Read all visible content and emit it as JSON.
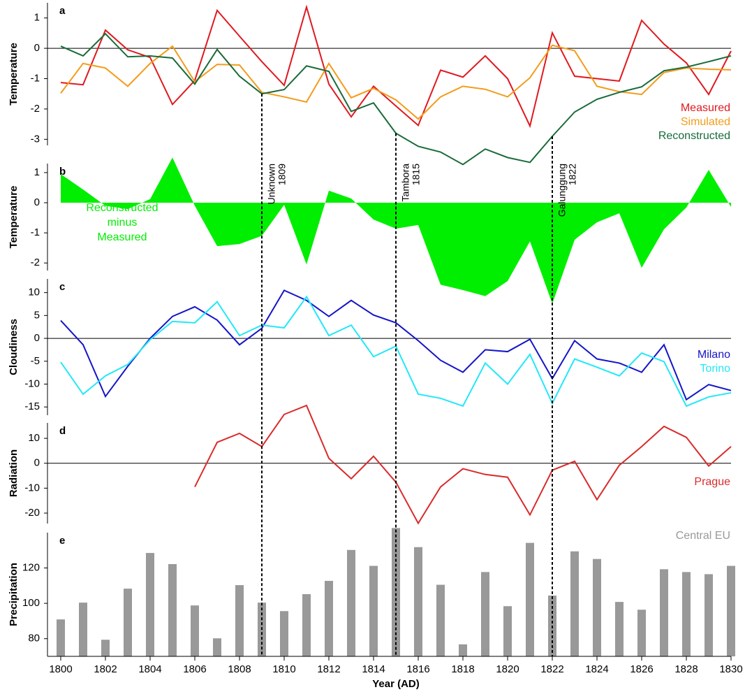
{
  "chart_data": [
    {
      "type": "line",
      "label": "a",
      "ylabel": "Temperature",
      "x": [
        1800,
        1801,
        1802,
        1803,
        1804,
        1805,
        1806,
        1807,
        1808,
        1809,
        1810,
        1811,
        1812,
        1813,
        1814,
        1815,
        1816,
        1817,
        1818,
        1819,
        1820,
        1821,
        1822,
        1823,
        1824,
        1825,
        1826,
        1827,
        1828,
        1829,
        1830
      ],
      "series": [
        {
          "name": "Measured",
          "color": "#e0191f",
          "values": [
            -1.13,
            -1.2,
            0.6,
            -0.05,
            -0.3,
            -1.85,
            -1.06,
            1.25,
            0.4,
            -0.44,
            -1.22,
            1.36,
            -1.18,
            -2.26,
            -1.25,
            -1.9,
            -2.54,
            -0.72,
            -0.95,
            -0.25,
            -1.0,
            -2.56,
            0.51,
            -0.92,
            -1.0,
            -1.08,
            0.92,
            0.14,
            -0.48,
            -1.52,
            -0.09
          ]
        },
        {
          "name": "Simulated",
          "color": "#f39c1a",
          "values": [
            -1.48,
            -0.5,
            -0.65,
            -1.25,
            -0.5,
            0.07,
            -1.1,
            -0.53,
            -0.55,
            -1.45,
            -1.6,
            -1.77,
            -0.5,
            -1.63,
            -1.32,
            -1.7,
            -2.33,
            -1.6,
            -1.25,
            -1.35,
            -1.6,
            -0.97,
            0.1,
            -0.08,
            -1.25,
            -1.43,
            -1.52,
            -0.8,
            -0.65,
            -0.69,
            -0.71
          ]
        },
        {
          "name": "Reconstructed",
          "color": "#1a6b3a",
          "values": [
            0.07,
            -0.25,
            0.48,
            -0.28,
            -0.25,
            -0.32,
            -1.18,
            -0.04,
            -0.92,
            -1.5,
            -1.36,
            -0.58,
            -0.76,
            -2.08,
            -1.8,
            -2.8,
            -3.23,
            -3.42,
            -3.83,
            -3.32,
            -3.6,
            -3.76,
            -2.9,
            -2.1,
            -1.68,
            -1.45,
            -1.27,
            -0.74,
            -0.62,
            -0.44,
            -0.25
          ]
        }
      ],
      "ylim": [
        -3.2,
        1.5
      ],
      "yticks": [
        -3,
        -2,
        -1,
        0,
        1
      ],
      "zero_line": true,
      "legend": "lower right"
    },
    {
      "type": "area",
      "label": "b",
      "ylabel": "Temperature",
      "x": [
        1800,
        1801,
        1802,
        1803,
        1804,
        1805,
        1806,
        1807,
        1808,
        1809,
        1810,
        1811,
        1812,
        1813,
        1814,
        1815,
        1816,
        1817,
        1818,
        1819,
        1820,
        1821,
        1822,
        1823,
        1824,
        1825,
        1826,
        1827,
        1828,
        1829,
        1830
      ],
      "series": [
        {
          "name": "Reconstructed minus Measured",
          "color": "#00ee00",
          "values": [
            0.95,
            0.44,
            -0.1,
            -0.21,
            0.12,
            1.5,
            -0.1,
            -1.44,
            -1.37,
            -1.1,
            -0.07,
            -2.05,
            0.4,
            0.14,
            -0.56,
            -0.86,
            -0.74,
            -2.72,
            -2.9,
            -3.1,
            -2.6,
            -1.28,
            -3.35,
            -1.23,
            -0.65,
            -0.35,
            -2.16,
            -0.88,
            -0.16,
            1.09,
            -0.14
          ]
        }
      ],
      "ylim": [
        -2.25,
        1.3
      ],
      "yticks": [
        -2,
        -1,
        0,
        1
      ],
      "legend": "center left"
    },
    {
      "type": "line",
      "label": "c",
      "ylabel": "Cloudiness",
      "x": [
        1800,
        1801,
        1802,
        1803,
        1804,
        1805,
        1806,
        1807,
        1808,
        1809,
        1810,
        1811,
        1812,
        1813,
        1814,
        1815,
        1816,
        1817,
        1818,
        1819,
        1820,
        1821,
        1822,
        1823,
        1824,
        1825,
        1826,
        1827,
        1828,
        1829,
        1830
      ],
      "series": [
        {
          "name": "Milano",
          "color": "#1515c8",
          "values": [
            3.9,
            -1.4,
            -12.7,
            -6.1,
            0,
            4.8,
            6.9,
            4,
            -1.4,
            2.2,
            10.5,
            8.3,
            4.8,
            8.3,
            5.1,
            3.4,
            -0.5,
            -4.8,
            -7.4,
            -2.5,
            -2.9,
            -0.2,
            -8.8,
            -0.5,
            -4.5,
            -5.4,
            -7.4,
            -1.4,
            -13.4,
            -10.1,
            -11.4
          ]
        },
        {
          "name": "Torino",
          "color": "#22e8f8",
          "values": [
            -5.2,
            -12.2,
            -8.2,
            -5.7,
            -0.3,
            3.7,
            3.4,
            8,
            0.6,
            2.9,
            2.3,
            9.1,
            0.6,
            2.9,
            -4,
            -1.7,
            -12.2,
            -13.1,
            -14.8,
            -5.4,
            -10,
            -3.5,
            -14.2,
            -4.5,
            -6.3,
            -8.2,
            -3.2,
            -5.1,
            -14.8,
            -12.8,
            -11.9
          ]
        }
      ],
      "ylim": [
        -16.8,
        13
      ],
      "yticks": [
        -15,
        -10,
        -5,
        0,
        5,
        10
      ],
      "zero_line": true,
      "legend": "lower right"
    },
    {
      "type": "line",
      "label": "d",
      "ylabel": "Radiation",
      "x": [
        1800,
        1801,
        1802,
        1803,
        1804,
        1805,
        1806,
        1807,
        1808,
        1809,
        1810,
        1811,
        1812,
        1813,
        1814,
        1815,
        1816,
        1817,
        1818,
        1819,
        1820,
        1821,
        1822,
        1823,
        1824,
        1825,
        1826,
        1827,
        1828,
        1829,
        1830
      ],
      "series": [
        {
          "name": "Prague",
          "color": "#d92b2b",
          "values": [
            null,
            null,
            null,
            null,
            null,
            null,
            -9.5,
            8.4,
            12,
            6.7,
            19.6,
            23.2,
            2,
            -6.2,
            2.8,
            -7.6,
            -24.1,
            -9.5,
            -2.2,
            -4.5,
            -5.6,
            -20.7,
            -2.8,
            0.8,
            -14.6,
            -0.8,
            6.7,
            14.8,
            10.4,
            -1.1,
            6.7
          ]
        }
      ],
      "ylim": [
        -24.2,
        16.2
      ],
      "yticks": [
        -20,
        -10,
        0,
        10
      ],
      "zero_line": true,
      "legend": "lower right"
    },
    {
      "type": "bar",
      "label": "e",
      "ylabel": "Precipitation",
      "xlabel": "Year (AD)",
      "x": [
        1800,
        1801,
        1802,
        1803,
        1804,
        1805,
        1806,
        1807,
        1808,
        1809,
        1810,
        1811,
        1812,
        1813,
        1814,
        1815,
        1816,
        1817,
        1818,
        1819,
        1820,
        1821,
        1822,
        1823,
        1824,
        1825,
        1826,
        1827,
        1828,
        1829,
        1830
      ],
      "series": [
        {
          "name": "Central EU",
          "color": "#999999",
          "values": [
            90.9,
            100.4,
            79.4,
            108.3,
            128.5,
            122.2,
            98.8,
            80.2,
            110.3,
            100.4,
            95.6,
            105.2,
            112.7,
            130.2,
            121.2,
            142.6,
            131.8,
            110.5,
            76.8,
            117.7,
            98.4,
            134.2,
            104.4,
            129.4,
            125.1,
            100.8,
            96.4,
            119.3,
            117.7,
            116.5,
            121.2
          ]
        }
      ],
      "ylim": [
        70,
        140
      ],
      "yticks": [
        80,
        100,
        120
      ],
      "xlim": [
        1800,
        1830
      ],
      "xticks": [
        1800,
        1802,
        1804,
        1806,
        1808,
        1810,
        1812,
        1814,
        1816,
        1818,
        1820,
        1822,
        1824,
        1826,
        1828,
        1830
      ],
      "legend": "upper right"
    }
  ],
  "annotations": [
    {
      "x": 1809,
      "lines": [
        "Unknown",
        "1809"
      ]
    },
    {
      "x": 1815,
      "lines": [
        "Tambora",
        "1815"
      ]
    },
    {
      "x": 1822,
      "lines": [
        "Galunggung",
        "1822"
      ]
    }
  ]
}
